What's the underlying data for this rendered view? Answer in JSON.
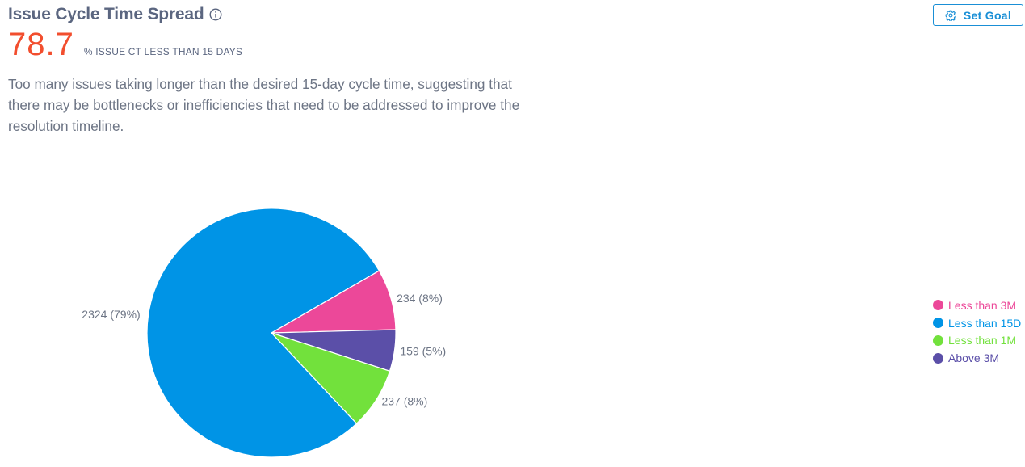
{
  "header": {
    "title": "Issue Cycle Time Spread",
    "info_icon": "info-circle-icon"
  },
  "metric": {
    "value": "78.7",
    "label": "% ISSUE CT LESS THAN 15 DAYS",
    "color": "#f24e2e"
  },
  "description": "Too many issues taking longer than the desired 15-day cycle time, suggesting that there may be bottlenecks or inefficiencies that need to be addressed to improve the resolution timeline.",
  "set_goal": {
    "label": "Set Goal",
    "icon": "gear-icon",
    "color": "#1a8fd6"
  },
  "chart_data": {
    "type": "pie",
    "title": "",
    "legend_position": "right",
    "slices": [
      {
        "name": "Less than 3M",
        "value": 234,
        "label": "234 (8%)",
        "color": "#ec4899"
      },
      {
        "name": "Above 3M",
        "value": 159,
        "label": "159 (5%)",
        "color": "#5b4fa8"
      },
      {
        "name": "Less than 1M",
        "value": 237,
        "label": "237 (8%)",
        "color": "#72e13c"
      },
      {
        "name": "Less than 15D",
        "value": 2324,
        "label": "2324 (79%)",
        "color": "#0094e6"
      }
    ],
    "legend": [
      {
        "name": "Less than 3M",
        "color": "#ec4899"
      },
      {
        "name": "Less than 15D",
        "color": "#0094e6"
      },
      {
        "name": "Less than 1M",
        "color": "#72e13c"
      },
      {
        "name": "Above 3M",
        "color": "#5b4fa8"
      }
    ]
  }
}
